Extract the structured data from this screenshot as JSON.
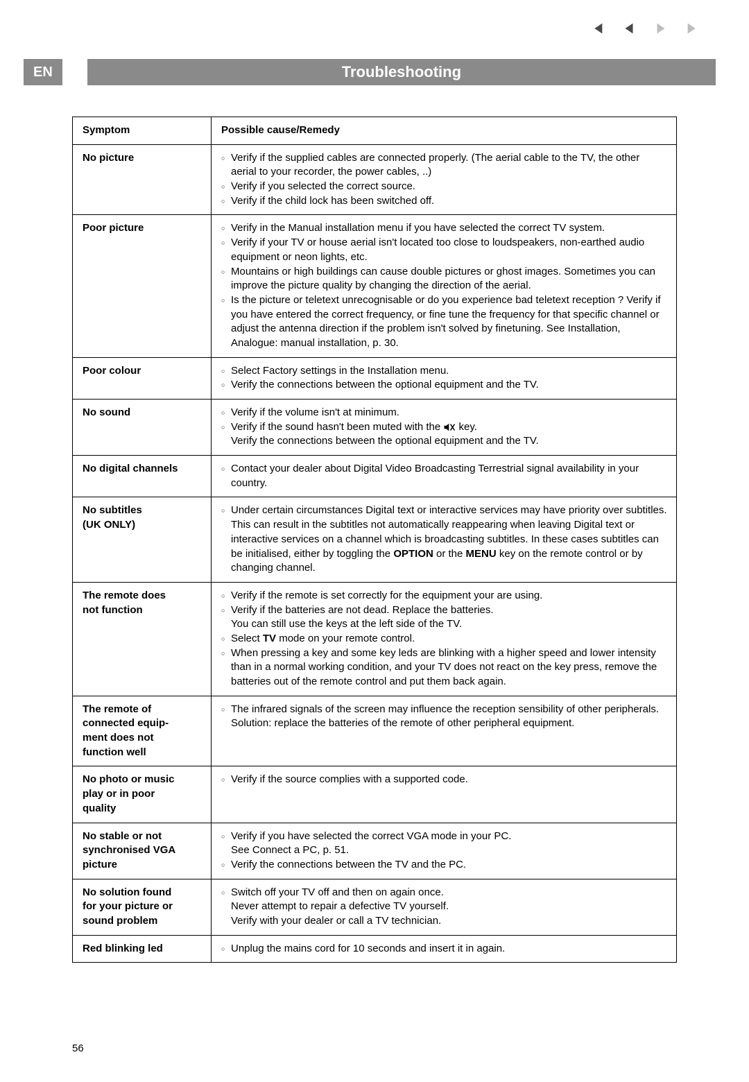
{
  "lang_badge": "EN",
  "page_title": "Troubleshooting",
  "page_number": "56",
  "headers": {
    "symptom": "Symptom",
    "remedy": "Possible cause/Remedy"
  },
  "colors": {
    "band_bg": "#8a8a8a",
    "band_fg": "#ffffff",
    "text": "#000000",
    "border": "#000000",
    "nav_active": "#4a4a4a",
    "nav_inactive": "#bdbdbd"
  },
  "nav": {
    "first_enabled": true,
    "prev_enabled": true,
    "next_enabled": false,
    "last_enabled": false
  },
  "rows": [
    {
      "symptom": "No picture",
      "items": [
        {
          "text": "Verify if the supplied cables are connected properly. (The aerial cable to the TV, the other aerial to your recorder, the power cables, ..)"
        },
        {
          "text": "Verify if you selected the correct source."
        },
        {
          "text": "Verify if the child lock has been switched off."
        }
      ]
    },
    {
      "symptom": "Poor picture",
      "items": [
        {
          "text": "Verify in the Manual installation menu if you have selected the correct TV system."
        },
        {
          "text": "Verify if your TV or house aerial isn't located too close to loudspeakers, non-earthed audio equipment or neon lights, etc."
        },
        {
          "text": "Mountains or high buildings can cause double pictures or ghost images. Sometimes you can improve the picture quality by changing the direction of the aerial."
        },
        {
          "text": "Is the picture or teletext unrecognisable or do you experience bad teletext reception ? Verify if you have entered the correct frequency, or fine tune the frequency for that specific channel or adjust the antenna direction if the problem isn't solved by finetuning. See Installation, Analogue: manual installation, p. 30."
        }
      ]
    },
    {
      "symptom": "Poor colour",
      "items": [
        {
          "text": "Select Factory settings in the Installation menu."
        },
        {
          "text": "Verify the connections between the optional equipment and the TV."
        }
      ]
    },
    {
      "symptom": "No sound",
      "items": [
        {
          "text": "Verify if the volume isn't at minimum."
        },
        {
          "text_before": "Verify if the sound hasn't been muted with the ",
          "mute_icon": true,
          "text_after": " key.",
          "cont": "Verify the connections between the optional equipment and the TV."
        }
      ]
    },
    {
      "symptom": "No digital channels",
      "items": [
        {
          "text": "Contact your dealer about Digital Video Broadcasting Terrestrial signal availability in your country."
        }
      ]
    },
    {
      "symptom": "No subtitles (UK ONLY)",
      "items": [
        {
          "text_html": "Under certain circumstances Digital text or interactive services may have priority over subtitles. This can result in the subtitles not automatically reappearing when leaving Digital text or interactive services on a channel which is broadcasting subtitles. In these cases subtitles can be initialised, either by toggling the <b>OPTION</b> or the <b>MENU</b> key on the remote control or by changing channel."
        }
      ]
    },
    {
      "symptom": "The remote does not function",
      "items": [
        {
          "text": "Verify if the remote is set correctly for the equipment your are using."
        },
        {
          "text": "Verify if the batteries are not dead. Replace the batteries.",
          "cont": "You can still use the keys at the left side of the TV."
        },
        {
          "text_html": "Select <b>TV</b> mode on your remote control."
        },
        {
          "text": "When pressing a key and some key leds are blinking with a higher speed and lower intensity than in a normal working condition, and your TV does not react on the key press, remove the batteries out of the remote control and put them back again."
        }
      ]
    },
    {
      "symptom": "The remote of connected equip-ment does not function well",
      "items": [
        {
          "text": "The infrared signals of the screen may influence the reception sensibility of other peripherals.",
          "cont": "Solution: replace the batteries of the remote of other peripheral equipment."
        }
      ]
    },
    {
      "symptom": "No photo or music play or in poor quality",
      "items": [
        {
          "text": "Verify if the source complies with a supported code."
        }
      ]
    },
    {
      "symptom": "No stable or not synchronised VGA picture",
      "items": [
        {
          "text": "Verify if you have selected the correct VGA mode in your PC.",
          "cont": "See Connect a PC, p. 51."
        },
        {
          "text": "Verify the connections between the TV and the PC."
        }
      ]
    },
    {
      "symptom": "No solution found for your picture or sound problem",
      "items": [
        {
          "text": "Switch off your TV off and then on again once.",
          "cont": "Never attempt to repair a defective TV yourself.",
          "cont2": "Verify with your dealer or call a TV technician."
        }
      ]
    },
    {
      "symptom": "Red blinking led",
      "items": [
        {
          "text": "Unplug the mains cord for 10 seconds and insert it in again."
        }
      ]
    }
  ]
}
